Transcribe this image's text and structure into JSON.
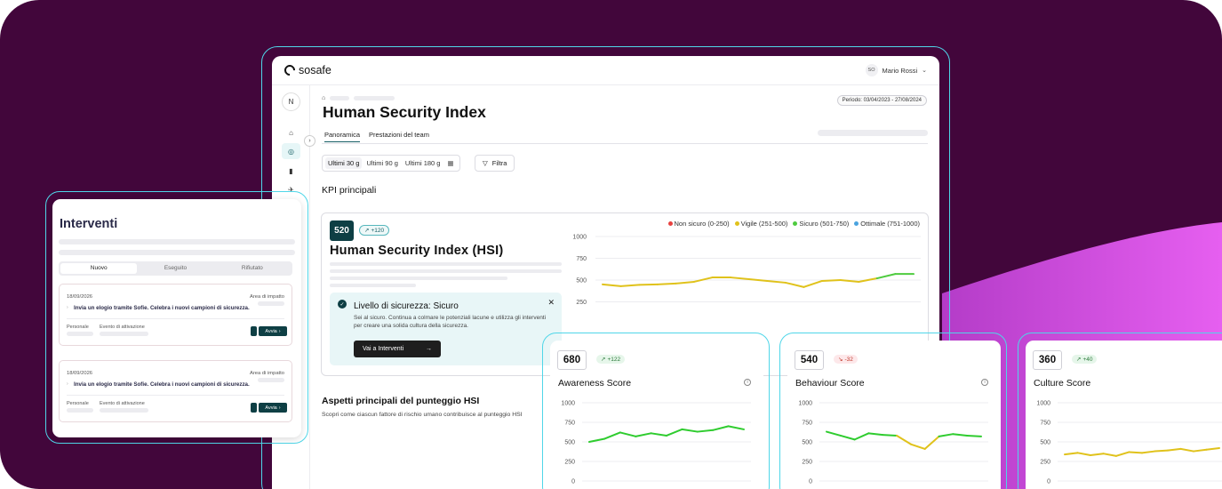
{
  "app": {
    "logo_text": "sosafe",
    "user_initials": "SO",
    "user_name": "Mario Rossi",
    "sidebar_avatar": "N"
  },
  "page": {
    "title": "Human Security Index",
    "period": "Periodo: 03/04/2023 - 27/08/2024",
    "tabs": [
      "Panoramica",
      "Prestazioni del team"
    ],
    "range_options": [
      "Ultimi 30 g",
      "Ultimi 90 g",
      "Ultimi 180 g"
    ],
    "filter_label": "Filtra",
    "kpi_heading": "KPI principali",
    "aspects_heading": "Aspetti principali del punteggio HSI",
    "aspects_sub": "Scopri come ciascun fattore di rischio umano contribuisce al punteggio HSI"
  },
  "hsi": {
    "score": "520",
    "delta": "+120",
    "title": "Human Security Index (HSI)",
    "level_title": "Livello di sicurezza: Sicuro",
    "level_desc": "Sei al sicuro. Continua a colmare le potenziali lacune e utilizza gli interventi per creare una solida cultura della sicurezza.",
    "level_button": "Vai a Interventi",
    "legend": [
      {
        "label": "Non sicuro (0-250)",
        "color": "#e8413f"
      },
      {
        "label": "Vigile (251-500)",
        "color": "#e0c21b"
      },
      {
        "label": "Sicuro (501-750)",
        "color": "#4ecb3f"
      },
      {
        "label": "Ottimale (751-1000)",
        "color": "#4aa3df"
      }
    ]
  },
  "interventi": {
    "title": "Interventi",
    "tabs": [
      "Nuovo",
      "Eseguito",
      "Rifiutato"
    ],
    "cards": [
      {
        "date": "18/09/2026",
        "area_label": "Area di impatto",
        "text": "Invia un elogio tramite Sofie. Celebra i nuovi campioni di sicurezza.",
        "label_a": "Personale",
        "label_b": "Evento di attivazione",
        "button": "Avvia"
      },
      {
        "date": "18/09/2026",
        "area_label": "Area di impatto",
        "text": "Invia un elogio tramite Sofie. Celebra i nuovi campioni di sicurezza.",
        "label_a": "Personale",
        "label_b": "Evento di attivazione",
        "button": "Avvia"
      }
    ]
  },
  "scores": [
    {
      "score": "680",
      "delta": "+122",
      "trend": "up",
      "title": "Awareness Score"
    },
    {
      "score": "540",
      "delta": "-32",
      "trend": "down",
      "title": "Behaviour Score"
    },
    {
      "score": "360",
      "delta": "+40",
      "trend": "up",
      "title": "Culture Score"
    }
  ],
  "chart_data": [
    {
      "type": "line",
      "title": "Human Security Index (HSI)",
      "ylim": [
        0,
        1000
      ],
      "yticks": [
        "1000",
        "750",
        "500",
        "250"
      ],
      "series": [
        {
          "values": [
            450,
            430,
            445,
            450,
            460,
            480,
            530,
            530,
            510,
            490,
            470,
            420,
            490,
            500,
            480,
            520,
            570,
            570
          ],
          "colors": [
            "#e0c21b",
            "#e0c21b",
            "#e0c21b",
            "#e0c21b",
            "#e0c21b",
            "#e0c21b",
            "#e0c21b",
            "#e0c21b",
            "#e0c21b",
            "#e0c21b",
            "#e0c21b",
            "#e0c21b",
            "#e0c21b",
            "#e0c21b",
            "#e0c21b",
            "#e0c21b",
            "#4ecb3f",
            "#4ecb3f"
          ]
        }
      ]
    },
    {
      "type": "line",
      "title": "Awareness Score",
      "ylim": [
        0,
        1000
      ],
      "yticks": [
        "1000",
        "750",
        "500",
        "250",
        "0"
      ],
      "series": [
        {
          "values": [
            500,
            540,
            620,
            570,
            610,
            580,
            660,
            630,
            650,
            700,
            660
          ],
          "color": "#2fcc2f"
        }
      ]
    },
    {
      "type": "line",
      "title": "Behaviour Score",
      "ylim": [
        0,
        1000
      ],
      "yticks": [
        "1000",
        "750",
        "500",
        "250",
        "0"
      ],
      "series": [
        {
          "values": [
            630,
            580,
            530,
            610,
            590,
            580,
            470,
            410,
            570,
            600,
            580,
            570
          ],
          "color": "#2fcc2f",
          "dip_color": "#e0c21b"
        }
      ]
    },
    {
      "type": "line",
      "title": "Culture Score",
      "ylim": [
        0,
        1000
      ],
      "yticks": [
        "1000",
        "750",
        "500",
        "250",
        "0"
      ],
      "series": [
        {
          "values": [
            340,
            360,
            330,
            350,
            320,
            370,
            360,
            380,
            390,
            410,
            380,
            400,
            420
          ],
          "color": "#e0c21b"
        }
      ]
    }
  ]
}
